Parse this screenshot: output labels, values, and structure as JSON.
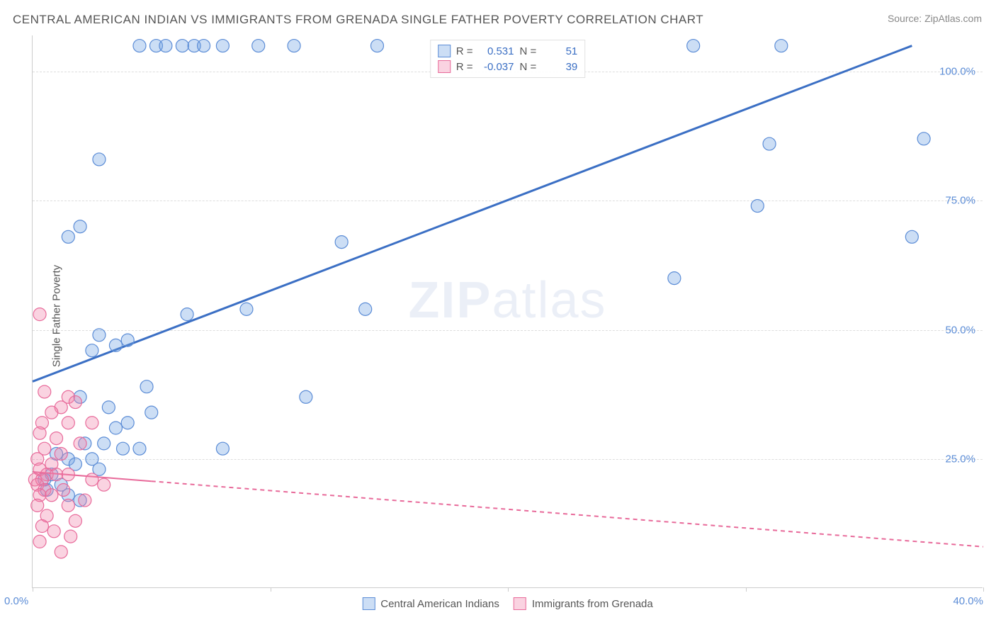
{
  "title": "CENTRAL AMERICAN INDIAN VS IMMIGRANTS FROM GRENADA SINGLE FATHER POVERTY CORRELATION CHART",
  "source": "Source: ZipAtlas.com",
  "y_axis_label": "Single Father Poverty",
  "watermark": "ZIPatlas",
  "chart": {
    "type": "scatter",
    "background_color": "#ffffff",
    "grid_color": "#dddddd",
    "axis_color": "#cccccc",
    "tick_color": "#5b8cd6",
    "xlim": [
      0,
      40
    ],
    "ylim": [
      0,
      107
    ],
    "x_ticks": [
      0,
      10,
      20,
      30,
      40
    ],
    "x_tick_labels": [
      "0.0%",
      "",
      "",
      "",
      "40.0%"
    ],
    "y_gridlines": [
      25,
      50,
      75,
      100
    ],
    "y_tick_labels": [
      "25.0%",
      "50.0%",
      "75.0%",
      "100.0%"
    ],
    "series": [
      {
        "name": "Central American Indians",
        "color_fill": "rgba(110, 160, 225, 0.35)",
        "color_stroke": "#5b8cd6",
        "marker_radius": 9,
        "r_value": "0.531",
        "n_value": "51",
        "trend": {
          "x1": 0,
          "y1": 40,
          "x2": 37,
          "y2": 105,
          "stroke": "#3b6fc4",
          "width": 3,
          "dash_after_x": null
        },
        "points": [
          [
            4.5,
            105
          ],
          [
            5.2,
            105
          ],
          [
            5.6,
            105
          ],
          [
            6.3,
            105
          ],
          [
            6.8,
            105
          ],
          [
            7.2,
            105
          ],
          [
            8.0,
            105
          ],
          [
            9.5,
            105
          ],
          [
            11.0,
            105
          ],
          [
            14.5,
            105
          ],
          [
            27.8,
            105
          ],
          [
            31.5,
            105
          ],
          [
            2.8,
            83
          ],
          [
            37.5,
            87
          ],
          [
            31.0,
            86
          ],
          [
            30.5,
            74
          ],
          [
            37.0,
            68
          ],
          [
            1.5,
            68
          ],
          [
            2.0,
            70
          ],
          [
            27.0,
            60
          ],
          [
            13.0,
            67
          ],
          [
            9.0,
            54
          ],
          [
            14.0,
            54
          ],
          [
            6.5,
            53
          ],
          [
            2.8,
            49
          ],
          [
            4.0,
            48
          ],
          [
            3.5,
            47
          ],
          [
            2.5,
            46
          ],
          [
            11.5,
            37
          ],
          [
            4.8,
            39
          ],
          [
            2.0,
            37
          ],
          [
            3.2,
            35
          ],
          [
            5.0,
            34
          ],
          [
            4.0,
            32
          ],
          [
            3.5,
            31
          ],
          [
            3.0,
            28
          ],
          [
            2.2,
            28
          ],
          [
            3.8,
            27
          ],
          [
            4.5,
            27
          ],
          [
            8.0,
            27
          ],
          [
            1.0,
            26
          ],
          [
            1.5,
            25
          ],
          [
            2.5,
            25
          ],
          [
            1.8,
            24
          ],
          [
            2.8,
            23
          ],
          [
            0.8,
            22
          ],
          [
            1.2,
            20
          ],
          [
            0.6,
            19
          ],
          [
            1.5,
            18
          ],
          [
            2.0,
            17
          ],
          [
            0.5,
            21
          ]
        ]
      },
      {
        "name": "Immigrants from Grenada",
        "color_fill": "rgba(240, 130, 170, 0.35)",
        "color_stroke": "#e86a9a",
        "marker_radius": 9,
        "r_value": "-0.037",
        "n_value": "39",
        "trend": {
          "x1": 0,
          "y1": 22.5,
          "x2": 40,
          "y2": 8,
          "stroke": "#e86a9a",
          "width": 2,
          "dash_after_x": 5
        },
        "points": [
          [
            0.3,
            53
          ],
          [
            0.5,
            38
          ],
          [
            1.5,
            37
          ],
          [
            1.8,
            36
          ],
          [
            1.2,
            35
          ],
          [
            0.8,
            34
          ],
          [
            0.4,
            32
          ],
          [
            1.5,
            32
          ],
          [
            2.5,
            32
          ],
          [
            0.3,
            30
          ],
          [
            1.0,
            29
          ],
          [
            2.0,
            28
          ],
          [
            0.5,
            27
          ],
          [
            1.2,
            26
          ],
          [
            0.2,
            25
          ],
          [
            0.8,
            24
          ],
          [
            0.3,
            23
          ],
          [
            0.6,
            22
          ],
          [
            1.0,
            22
          ],
          [
            1.5,
            22
          ],
          [
            0.1,
            21
          ],
          [
            0.4,
            21
          ],
          [
            2.5,
            21
          ],
          [
            3.0,
            20
          ],
          [
            0.2,
            20
          ],
          [
            0.5,
            19
          ],
          [
            1.3,
            19
          ],
          [
            0.3,
            18
          ],
          [
            0.8,
            18
          ],
          [
            0.2,
            16
          ],
          [
            1.5,
            16
          ],
          [
            2.2,
            17
          ],
          [
            0.6,
            14
          ],
          [
            1.8,
            13
          ],
          [
            0.4,
            12
          ],
          [
            0.9,
            11
          ],
          [
            1.6,
            10
          ],
          [
            0.3,
            9
          ],
          [
            1.2,
            7
          ]
        ]
      }
    ]
  },
  "legend_top": {
    "r_label": "R =",
    "n_label": "N ="
  },
  "legend_bottom": [
    "Central American Indians",
    "Immigrants from Grenada"
  ]
}
